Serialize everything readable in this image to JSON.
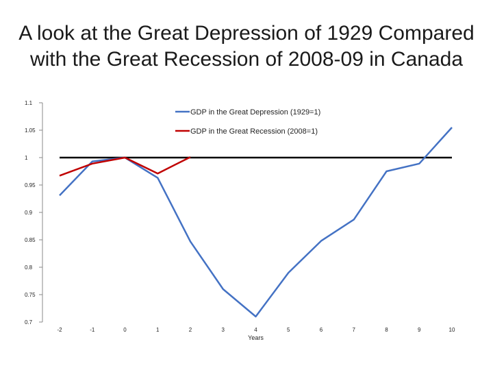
{
  "slide": {
    "title_line1": "A look at the Great Depression of 1929 Compared",
    "title_line2": "with the Great Recession of 2008-09 in Canada"
  },
  "chart_data": {
    "type": "line",
    "title": "",
    "xlabel": "Years",
    "ylabel": "",
    "x": [
      -2,
      -1,
      0,
      1,
      2,
      3,
      4,
      5,
      6,
      7,
      8,
      9,
      10
    ],
    "x_tick_labels": [
      "-2",
      "-1",
      "0",
      "1",
      "2",
      "3",
      "4",
      "5",
      "6",
      "7",
      "8",
      "9",
      "10"
    ],
    "ylim": [
      0.7,
      1.1
    ],
    "y_ticks": [
      1.1,
      1.05,
      1,
      0.95,
      0.9,
      0.85,
      0.8,
      0.75,
      0.7
    ],
    "y_tick_labels": [
      "1.1",
      "1.05",
      "1",
      "0.95",
      "0.9",
      "0.85",
      "0.8",
      "0.75",
      "0.7"
    ],
    "grid": false,
    "legend_position": "top-right",
    "reference_line": {
      "y": 1,
      "color": "#000000"
    },
    "series": [
      {
        "name": "GDP in the Great Depression (1929=1)",
        "color": "#4472C4",
        "x": [
          -2,
          -1,
          0,
          1,
          2,
          3,
          4,
          5,
          6,
          7,
          8,
          9,
          10
        ],
        "values": [
          0.931,
          0.993,
          1.0,
          0.963,
          0.847,
          0.76,
          0.71,
          0.79,
          0.848,
          0.887,
          0.975,
          0.989,
          1.055
        ]
      },
      {
        "name": "GDP in the Great Recession (2008=1)",
        "color": "#C00000",
        "x": [
          -2,
          -1,
          0,
          1,
          2
        ],
        "values": [
          0.967,
          0.989,
          1.0,
          0.971,
          1.001
        ]
      }
    ]
  }
}
